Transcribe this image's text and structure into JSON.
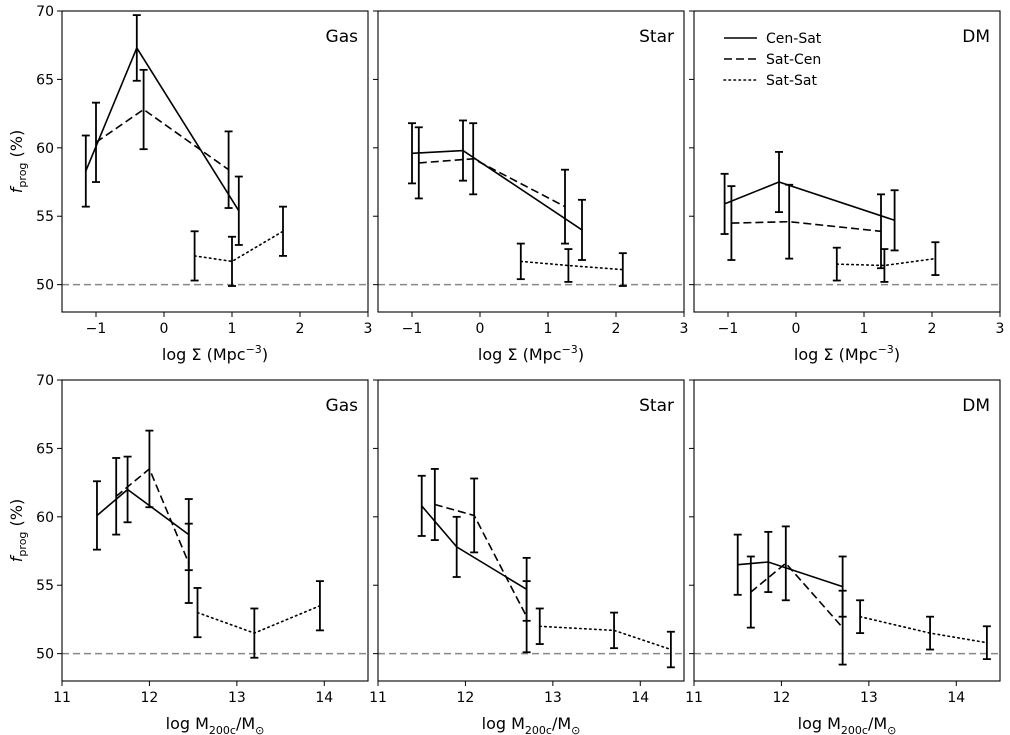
{
  "figure": {
    "ylabel_main": "f",
    "ylabel_sub": "prog",
    "ylabel_unit": " (%)",
    "xlabel_top": "log Σ (Mpc",
    "xlabel_top_sup": "−3",
    "xlabel_top_end": ")",
    "xlabel_bottom": "log M",
    "xlabel_bottom_sub": "200c",
    "xlabel_bottom_mid": "/M",
    "xlabel_bottom_sub2": "⊙"
  },
  "legend": {
    "entries": [
      "Cen-Sat",
      "Sat-Cen",
      "Sat-Sat"
    ]
  },
  "chart_data": [
    {
      "type": "line",
      "title": "Gas",
      "xvar": "sigma",
      "xlim": [
        -1.5,
        3
      ],
      "ylim": [
        48,
        70
      ],
      "xticks": [
        -1,
        0,
        1,
        2,
        3
      ],
      "xticklabels": [
        "−1",
        "0",
        "1",
        "2",
        "3"
      ],
      "yticks": [
        50,
        55,
        60,
        65,
        70
      ],
      "reference_y": 50,
      "series": [
        {
          "name": "Cen-Sat",
          "style": "solid",
          "x": [
            -1.15,
            -0.4,
            1.1
          ],
          "y": [
            58.3,
            67.3,
            55.4
          ],
          "err": [
            2.6,
            2.4,
            2.5
          ]
        },
        {
          "name": "Sat-Cen",
          "style": "dashed",
          "x": [
            -1.0,
            -0.3,
            0.95
          ],
          "y": [
            60.4,
            62.8,
            58.4
          ],
          "err": [
            2.9,
            2.9,
            2.8
          ]
        },
        {
          "name": "Sat-Sat",
          "style": "dotted",
          "x": [
            0.45,
            1.0,
            1.75
          ],
          "y": [
            52.1,
            51.7,
            53.9
          ],
          "err": [
            1.8,
            1.8,
            1.8
          ]
        }
      ]
    },
    {
      "type": "line",
      "title": "Star",
      "xvar": "sigma",
      "xlim": [
        -1.5,
        3
      ],
      "ylim": [
        48,
        70
      ],
      "xticks": [
        -1,
        0,
        1,
        2,
        3
      ],
      "xticklabels": [
        "−1",
        "0",
        "1",
        "2",
        "3"
      ],
      "yticks": [
        50,
        55,
        60,
        65,
        70
      ],
      "reference_y": 50,
      "series": [
        {
          "name": "Cen-Sat",
          "style": "solid",
          "x": [
            -1.0,
            -0.25,
            1.5
          ],
          "y": [
            59.6,
            59.8,
            54.0
          ],
          "err": [
            2.2,
            2.2,
            2.2
          ]
        },
        {
          "name": "Sat-Cen",
          "style": "dashed",
          "x": [
            -0.9,
            -0.1,
            1.25
          ],
          "y": [
            58.9,
            59.2,
            55.7
          ],
          "err": [
            2.6,
            2.6,
            2.7
          ]
        },
        {
          "name": "Sat-Sat",
          "style": "dotted",
          "x": [
            0.6,
            1.3,
            2.1
          ],
          "y": [
            51.7,
            51.4,
            51.1
          ],
          "err": [
            1.3,
            1.2,
            1.2
          ]
        }
      ]
    },
    {
      "type": "line",
      "title": "DM",
      "xvar": "sigma",
      "xlim": [
        -1.5,
        3
      ],
      "ylim": [
        48,
        70
      ],
      "xticks": [
        -1,
        0,
        1,
        2,
        3
      ],
      "xticklabels": [
        "−1",
        "0",
        "1",
        "2",
        "3"
      ],
      "yticks": [
        50,
        55,
        60,
        65,
        70
      ],
      "reference_y": 50,
      "legend": true,
      "series": [
        {
          "name": "Cen-Sat",
          "style": "solid",
          "x": [
            -1.05,
            -0.25,
            1.45
          ],
          "y": [
            55.9,
            57.5,
            54.7
          ],
          "err": [
            2.2,
            2.2,
            2.2
          ]
        },
        {
          "name": "Sat-Cen",
          "style": "dashed",
          "x": [
            -0.95,
            -0.1,
            1.25
          ],
          "y": [
            54.5,
            54.6,
            53.9
          ],
          "err": [
            2.7,
            2.7,
            2.7
          ]
        },
        {
          "name": "Sat-Sat",
          "style": "dotted",
          "x": [
            0.6,
            1.3,
            2.05
          ],
          "y": [
            51.5,
            51.4,
            51.9
          ],
          "err": [
            1.2,
            1.2,
            1.2
          ]
        }
      ]
    },
    {
      "type": "line",
      "title": "Gas",
      "xvar": "mass",
      "xlim": [
        11,
        14.5
      ],
      "ylim": [
        48,
        70
      ],
      "xticks": [
        11,
        12,
        13,
        14
      ],
      "xticklabels": [
        "11",
        "12",
        "13",
        "14"
      ],
      "yticks": [
        50,
        55,
        60,
        65,
        70
      ],
      "reference_y": 50,
      "series": [
        {
          "name": "Cen-Sat",
          "style": "solid",
          "x": [
            11.4,
            11.75,
            12.45
          ],
          "y": [
            60.1,
            62.0,
            58.7
          ],
          "err": [
            2.5,
            2.4,
            2.6
          ]
        },
        {
          "name": "Sat-Cen",
          "style": "dashed",
          "x": [
            11.62,
            12.0,
            12.45
          ],
          "y": [
            61.5,
            63.5,
            56.6
          ],
          "err": [
            2.8,
            2.8,
            2.9
          ]
        },
        {
          "name": "Sat-Sat",
          "style": "dotted",
          "x": [
            12.55,
            13.2,
            13.95
          ],
          "y": [
            53.0,
            51.5,
            53.5
          ],
          "err": [
            1.8,
            1.8,
            1.8
          ]
        }
      ]
    },
    {
      "type": "line",
      "title": "Star",
      "xvar": "mass",
      "xlim": [
        11,
        14.5
      ],
      "ylim": [
        48,
        70
      ],
      "xticks": [
        11,
        12,
        13,
        14
      ],
      "xticklabels": [
        "11",
        "12",
        "13",
        "14"
      ],
      "yticks": [
        50,
        55,
        60,
        65,
        70
      ],
      "reference_y": 50,
      "series": [
        {
          "name": "Cen-Sat",
          "style": "solid",
          "x": [
            11.5,
            11.9,
            12.7
          ],
          "y": [
            60.8,
            57.8,
            54.7
          ],
          "err": [
            2.2,
            2.2,
            2.3
          ]
        },
        {
          "name": "Sat-Cen",
          "style": "dashed",
          "x": [
            11.65,
            12.1,
            12.7
          ],
          "y": [
            60.9,
            60.1,
            52.7
          ],
          "err": [
            2.6,
            2.7,
            2.6
          ]
        },
        {
          "name": "Sat-Sat",
          "style": "dotted",
          "x": [
            12.85,
            13.7,
            14.35
          ],
          "y": [
            52.0,
            51.7,
            50.3
          ],
          "err": [
            1.3,
            1.3,
            1.3
          ]
        }
      ]
    },
    {
      "type": "line",
      "title": "DM",
      "xvar": "mass",
      "xlim": [
        11,
        14.5
      ],
      "ylim": [
        48,
        70
      ],
      "xticks": [
        11,
        12,
        13,
        14
      ],
      "xticklabels": [
        "11",
        "12",
        "13",
        "14"
      ],
      "yticks": [
        50,
        55,
        60,
        65,
        70
      ],
      "reference_y": 50,
      "series": [
        {
          "name": "Cen-Sat",
          "style": "solid",
          "x": [
            11.5,
            11.85,
            12.7
          ],
          "y": [
            56.5,
            56.7,
            54.9
          ],
          "err": [
            2.2,
            2.2,
            2.2
          ]
        },
        {
          "name": "Sat-Cen",
          "style": "dashed",
          "x": [
            11.65,
            12.05,
            12.7
          ],
          "y": [
            54.5,
            56.6,
            51.9
          ],
          "err": [
            2.6,
            2.7,
            2.7
          ]
        },
        {
          "name": "Sat-Sat",
          "style": "dotted",
          "x": [
            12.9,
            13.7,
            14.35
          ],
          "y": [
            52.7,
            51.5,
            50.8
          ],
          "err": [
            1.2,
            1.2,
            1.2
          ]
        }
      ]
    }
  ]
}
